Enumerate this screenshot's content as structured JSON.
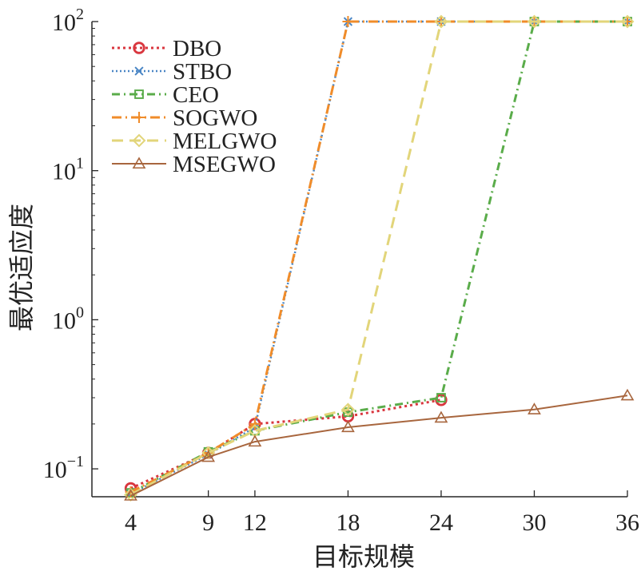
{
  "chart_data": {
    "type": "line",
    "title": "",
    "xlabel": "目标规模",
    "ylabel": "最优适应度",
    "yscale": "log",
    "xlim": [
      1.5,
      36
    ],
    "ylim": [
      0.065,
      100
    ],
    "x": [
      4,
      9,
      12,
      18,
      24,
      30,
      36
    ],
    "x_tick_labels": [
      "4",
      "9",
      "12",
      "18",
      "24",
      "30",
      "36"
    ],
    "y_ticks": [
      {
        "value": 0.1,
        "base": "10",
        "exp": "−1"
      },
      {
        "value": 1,
        "base": "10",
        "exp": "0"
      },
      {
        "value": 10,
        "base": "10",
        "exp": "1"
      },
      {
        "value": 100,
        "base": "10",
        "exp": "2"
      }
    ],
    "grid": false,
    "legend_position": "top-left",
    "series": [
      {
        "name": "DBO",
        "x": [
          4,
          9,
          12,
          18,
          24
        ],
        "values": [
          0.074,
          0.128,
          0.2,
          0.225,
          0.29
        ],
        "color": "#d9363e",
        "dash": "3,4",
        "marker": "circle",
        "width": 3
      },
      {
        "name": "STBO",
        "x": [
          4,
          9,
          12,
          18,
          24,
          30,
          36
        ],
        "values": [
          0.068,
          0.125,
          0.19,
          100,
          100,
          100,
          100
        ],
        "color": "#4a86c5",
        "dash": "2,3",
        "marker": "x",
        "width": 2.5
      },
      {
        "name": "CEO",
        "x": [
          4,
          9,
          12,
          18,
          24,
          30,
          36
        ],
        "values": [
          0.069,
          0.13,
          0.18,
          0.24,
          0.3,
          100,
          100
        ],
        "color": "#5aac4a",
        "dash": "10,5,2,5",
        "marker": "square",
        "width": 3
      },
      {
        "name": "SOGWO",
        "x": [
          4,
          9,
          12,
          18,
          24,
          30,
          36
        ],
        "values": [
          0.07,
          0.128,
          0.2,
          100,
          100,
          100,
          100
        ],
        "color": "#f08c2a",
        "dash": "12,5,2,5",
        "marker": "plus",
        "width": 3
      },
      {
        "name": "MELGWO",
        "x": [
          4,
          9,
          12,
          18,
          24,
          30,
          36
        ],
        "values": [
          0.067,
          0.128,
          0.18,
          0.25,
          100,
          100,
          100
        ],
        "color": "#e2d57a",
        "dash": "14,8",
        "marker": "diamond",
        "width": 3
      },
      {
        "name": "MSEGWO",
        "x": [
          4,
          9,
          12,
          18,
          24,
          30,
          36
        ],
        "values": [
          0.066,
          0.12,
          0.152,
          0.19,
          0.22,
          0.25,
          0.31
        ],
        "color": "#a8663e",
        "dash": "",
        "marker": "triangle",
        "width": 2
      }
    ]
  }
}
